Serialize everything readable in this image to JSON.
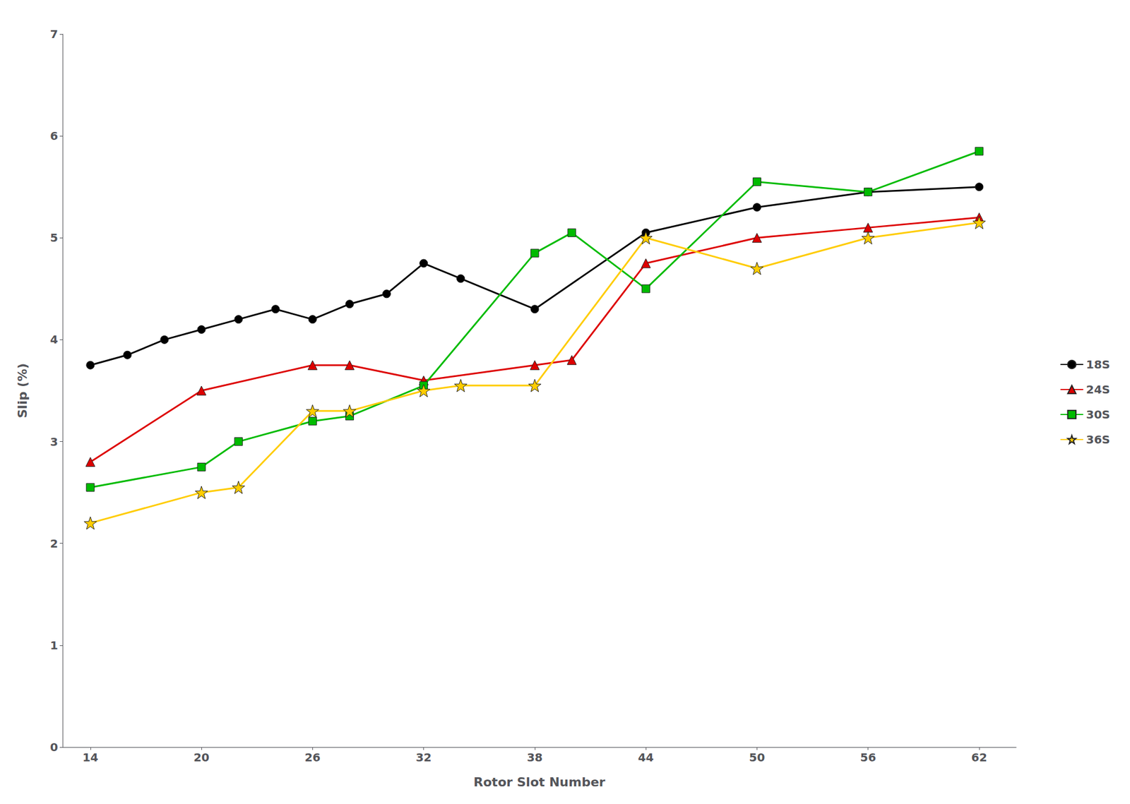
{
  "chart_data": {
    "type": "line",
    "xlabel": "Rotor Slot Number",
    "ylabel": "Slip (%)",
    "series": [
      {
        "name": "18S",
        "color": "#000000",
        "marker": "circle",
        "x": [
          14,
          16,
          18,
          20,
          22,
          24,
          26,
          28,
          30,
          32,
          34,
          38,
          44,
          50,
          56,
          62
        ],
        "values": [
          3.75,
          3.85,
          4.0,
          4.1,
          4.2,
          4.3,
          4.2,
          4.35,
          4.45,
          4.75,
          4.6,
          4.3,
          5.05,
          5.3,
          5.45,
          5.5
        ]
      },
      {
        "name": "24S",
        "color": "#dd0000",
        "marker": "triangle",
        "x": [
          14,
          20,
          26,
          28,
          32,
          38,
          40,
          44,
          50,
          56,
          62
        ],
        "values": [
          2.8,
          3.5,
          3.75,
          3.75,
          3.6,
          3.75,
          3.8,
          4.75,
          5.0,
          5.1,
          5.2
        ]
      },
      {
        "name": "30S",
        "color": "#00bb00",
        "marker": "square",
        "x": [
          14,
          20,
          22,
          26,
          28,
          32,
          38,
          40,
          44,
          50,
          56,
          62
        ],
        "values": [
          2.55,
          2.75,
          3.0,
          3.2,
          3.25,
          3.55,
          4.85,
          5.05,
          4.5,
          5.55,
          5.45,
          5.85
        ]
      },
      {
        "name": "36S",
        "color": "#ffcc00",
        "marker": "star",
        "x": [
          14,
          20,
          22,
          26,
          28,
          32,
          34,
          38,
          44,
          50,
          56,
          62
        ],
        "values": [
          2.2,
          2.5,
          2.55,
          3.3,
          3.3,
          3.5,
          3.55,
          3.55,
          5.0,
          4.7,
          5.0,
          5.15
        ]
      }
    ],
    "xlim": [
      12.5,
      64
    ],
    "xticks": [
      14,
      20,
      26,
      32,
      38,
      44,
      50,
      56,
      62
    ],
    "ylim": [
      0,
      7
    ],
    "yticks": [
      0,
      1,
      2,
      3,
      4,
      5,
      6,
      7
    ],
    "grid": false,
    "legend": "right"
  }
}
